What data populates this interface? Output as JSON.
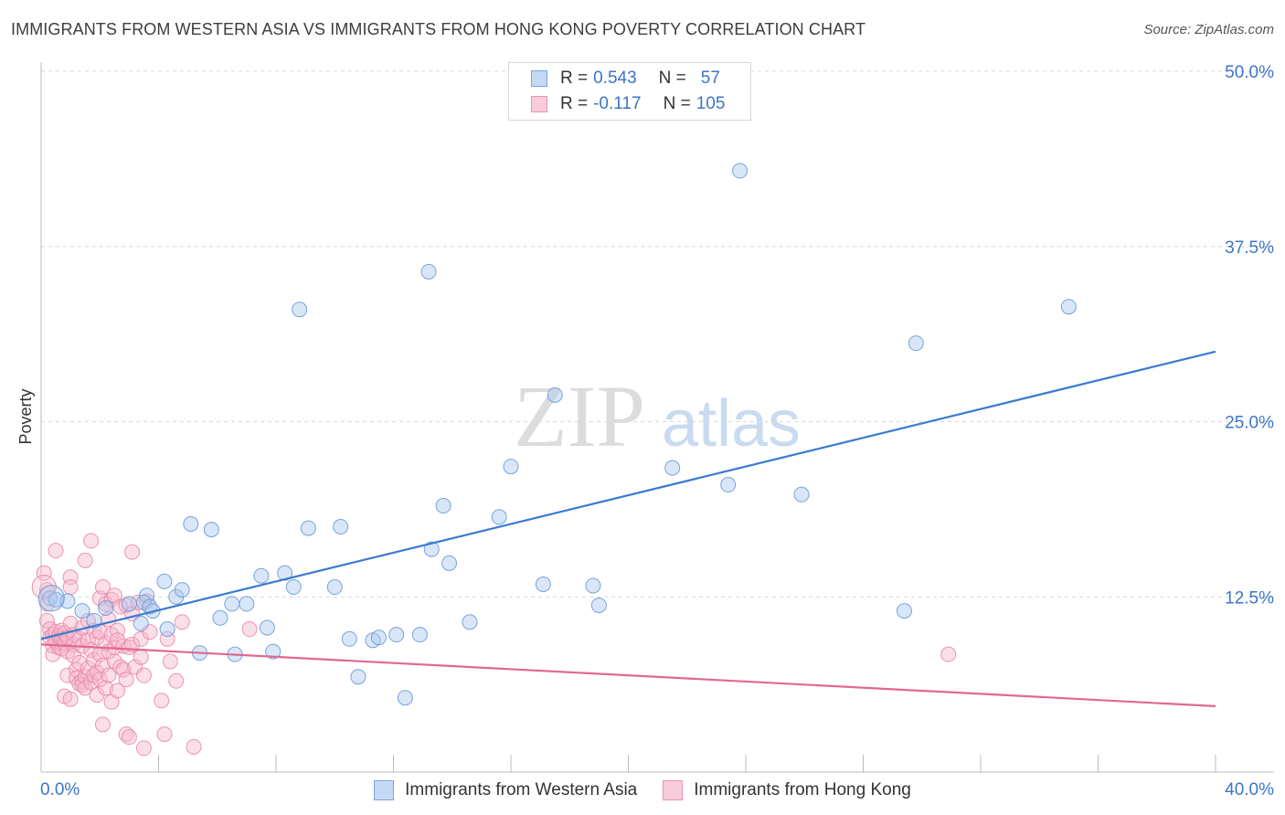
{
  "title": "IMMIGRANTS FROM WESTERN ASIA VS IMMIGRANTS FROM HONG KONG POVERTY CORRELATION CHART",
  "source": "Source: ZipAtlas.com",
  "watermark": {
    "zip": "ZIP",
    "atlas": "atlas"
  },
  "legend": {
    "series1": {
      "r_label": "R =",
      "r_value": "0.543",
      "n_label": "N =",
      "n_value": "57"
    },
    "series2": {
      "r_label": "R =",
      "r_value": "-0.117",
      "n_label": "N =",
      "n_value": "105"
    }
  },
  "colors": {
    "blue_fill": "#aac8ef",
    "blue_stroke": "#6a9ad6",
    "blue_line": "#3a7bd0",
    "pink_fill": "#f6b9cc",
    "pink_stroke": "#e98aa8",
    "pink_line": "#e2688f",
    "axis_text": "#3b75c8",
    "grid": "#d9d9d9"
  },
  "chart_data": {
    "type": "scatter",
    "title": "IMMIGRANTS FROM WESTERN ASIA VS IMMIGRANTS FROM HONG KONG POVERTY CORRELATION CHART",
    "xlabel": "",
    "ylabel": "Poverty",
    "xlim": [
      0,
      40
    ],
    "ylim": [
      0,
      50
    ],
    "x_ticks_labeled": [
      "0.0%",
      "40.0%"
    ],
    "y_ticks": [
      12.5,
      25.0,
      37.5,
      50.0
    ],
    "y_tick_labels": [
      "12.5%",
      "25.0%",
      "37.5%",
      "50.0%"
    ],
    "grid": true,
    "legend_position": "top-center",
    "series": [
      {
        "name": "Immigrants from Western Asia",
        "color": "blue",
        "r": 0.543,
        "n": 57,
        "trend": {
          "x": [
            0,
            40
          ],
          "y": [
            9.5,
            30.0
          ]
        },
        "points": [
          [
            0.3,
            12.4
          ],
          [
            0.5,
            12.3
          ],
          [
            0.9,
            12.2
          ],
          [
            1.4,
            11.5
          ],
          [
            1.8,
            10.8
          ],
          [
            2.2,
            11.7
          ],
          [
            3.0,
            12.0
          ],
          [
            3.4,
            10.6
          ],
          [
            3.6,
            12.6
          ],
          [
            3.5,
            12.1
          ],
          [
            3.7,
            11.8
          ],
          [
            3.8,
            11.5
          ],
          [
            4.2,
            13.6
          ],
          [
            4.3,
            10.2
          ],
          [
            4.6,
            12.5
          ],
          [
            4.8,
            13.0
          ],
          [
            5.1,
            17.7
          ],
          [
            5.4,
            8.5
          ],
          [
            5.8,
            17.3
          ],
          [
            6.1,
            11.0
          ],
          [
            6.5,
            12.0
          ],
          [
            6.6,
            8.4
          ],
          [
            7.0,
            12.0
          ],
          [
            7.5,
            14.0
          ],
          [
            7.7,
            10.3
          ],
          [
            7.9,
            8.6
          ],
          [
            8.3,
            14.2
          ],
          [
            8.6,
            13.2
          ],
          [
            8.8,
            33.0
          ],
          [
            9.1,
            17.4
          ],
          [
            10.0,
            13.2
          ],
          [
            10.2,
            17.5
          ],
          [
            10.5,
            9.5
          ],
          [
            10.8,
            6.8
          ],
          [
            11.3,
            9.4
          ],
          [
            11.5,
            9.6
          ],
          [
            12.1,
            9.8
          ],
          [
            12.4,
            5.3
          ],
          [
            12.9,
            9.8
          ],
          [
            13.2,
            35.7
          ],
          [
            13.3,
            15.9
          ],
          [
            13.7,
            19.0
          ],
          [
            13.9,
            14.9
          ],
          [
            14.6,
            10.7
          ],
          [
            15.6,
            18.2
          ],
          [
            16.0,
            21.8
          ],
          [
            17.1,
            13.4
          ],
          [
            17.5,
            26.9
          ],
          [
            18.8,
            13.3
          ],
          [
            19.0,
            11.9
          ],
          [
            21.5,
            21.7
          ],
          [
            23.4,
            20.5
          ],
          [
            23.8,
            42.9
          ],
          [
            25.9,
            19.8
          ],
          [
            29.4,
            11.5
          ],
          [
            29.8,
            30.6
          ],
          [
            35.0,
            33.2
          ]
        ]
      },
      {
        "name": "Immigrants from Hong Kong",
        "color": "pink",
        "r": -0.117,
        "n": 105,
        "trend": {
          "x": [
            0,
            40
          ],
          "y": [
            9.1,
            4.7
          ]
        },
        "points": [
          [
            0.1,
            14.2
          ],
          [
            0.2,
            13.0
          ],
          [
            0.2,
            12.0
          ],
          [
            0.2,
            10.8
          ],
          [
            0.3,
            10.2
          ],
          [
            0.3,
            9.6
          ],
          [
            0.4,
            9.8
          ],
          [
            0.4,
            9.0
          ],
          [
            0.4,
            8.4
          ],
          [
            0.5,
            15.8
          ],
          [
            0.5,
            10.0
          ],
          [
            0.5,
            9.3
          ],
          [
            0.6,
            9.7
          ],
          [
            0.6,
            8.9
          ],
          [
            0.7,
            10.1
          ],
          [
            0.7,
            9.5
          ],
          [
            0.7,
            8.8
          ],
          [
            0.8,
            9.9
          ],
          [
            0.8,
            9.2
          ],
          [
            0.8,
            5.4
          ],
          [
            0.9,
            9.6
          ],
          [
            0.9,
            8.6
          ],
          [
            0.9,
            6.9
          ],
          [
            1.0,
            13.9
          ],
          [
            1.0,
            13.2
          ],
          [
            1.0,
            10.6
          ],
          [
            1.0,
            5.2
          ],
          [
            1.1,
            9.8
          ],
          [
            1.1,
            9.1
          ],
          [
            1.1,
            8.3
          ],
          [
            1.2,
            7.3
          ],
          [
            1.2,
            6.7
          ],
          [
            1.3,
            9.5
          ],
          [
            1.3,
            7.8
          ],
          [
            1.3,
            6.3
          ],
          [
            1.4,
            10.3
          ],
          [
            1.4,
            9.0
          ],
          [
            1.4,
            6.5
          ],
          [
            1.4,
            6.2
          ],
          [
            1.5,
            15.1
          ],
          [
            1.5,
            6.8
          ],
          [
            1.5,
            6.0
          ],
          [
            1.6,
            10.8
          ],
          [
            1.6,
            9.4
          ],
          [
            1.6,
            7.4
          ],
          [
            1.7,
            8.7
          ],
          [
            1.7,
            6.4
          ],
          [
            1.7,
            16.5
          ],
          [
            1.8,
            10.1
          ],
          [
            1.8,
            8.0
          ],
          [
            1.8,
            6.9
          ],
          [
            1.9,
            9.6
          ],
          [
            1.9,
            7.1
          ],
          [
            1.9,
            5.5
          ],
          [
            2.0,
            12.4
          ],
          [
            2.0,
            10.0
          ],
          [
            2.0,
            8.4
          ],
          [
            2.0,
            6.6
          ],
          [
            2.1,
            13.2
          ],
          [
            2.1,
            7.6
          ],
          [
            2.1,
            3.4
          ],
          [
            2.2,
            12.0
          ],
          [
            2.2,
            9.2
          ],
          [
            2.2,
            6.0
          ],
          [
            2.3,
            10.9
          ],
          [
            2.3,
            8.6
          ],
          [
            2.3,
            6.9
          ],
          [
            2.4,
            12.3
          ],
          [
            2.4,
            9.8
          ],
          [
            2.4,
            5.0
          ],
          [
            2.5,
            12.6
          ],
          [
            2.5,
            8.9
          ],
          [
            2.5,
            7.9
          ],
          [
            2.6,
            10.1
          ],
          [
            2.6,
            9.4
          ],
          [
            2.6,
            5.8
          ],
          [
            2.7,
            11.8
          ],
          [
            2.7,
            7.5
          ],
          [
            2.8,
            9.0
          ],
          [
            2.8,
            7.3
          ],
          [
            2.9,
            11.9
          ],
          [
            2.9,
            6.6
          ],
          [
            2.9,
            2.7
          ],
          [
            3.0,
            8.9
          ],
          [
            3.0,
            2.5
          ],
          [
            3.1,
            15.7
          ],
          [
            3.1,
            11.3
          ],
          [
            3.1,
            9.1
          ],
          [
            3.2,
            7.5
          ],
          [
            3.3,
            12.1
          ],
          [
            3.4,
            9.5
          ],
          [
            3.4,
            8.2
          ],
          [
            3.5,
            6.9
          ],
          [
            3.5,
            1.7
          ],
          [
            3.6,
            12.2
          ],
          [
            3.7,
            10.0
          ],
          [
            4.1,
            5.1
          ],
          [
            4.2,
            2.7
          ],
          [
            4.3,
            9.5
          ],
          [
            4.4,
            7.9
          ],
          [
            4.6,
            6.5
          ],
          [
            4.8,
            10.7
          ],
          [
            5.2,
            1.8
          ],
          [
            7.1,
            10.2
          ],
          [
            30.9,
            8.4
          ]
        ]
      }
    ]
  },
  "bottom_legend": {
    "series1_label": "Immigrants from Western Asia",
    "series2_label": "Immigrants from Hong Kong"
  }
}
